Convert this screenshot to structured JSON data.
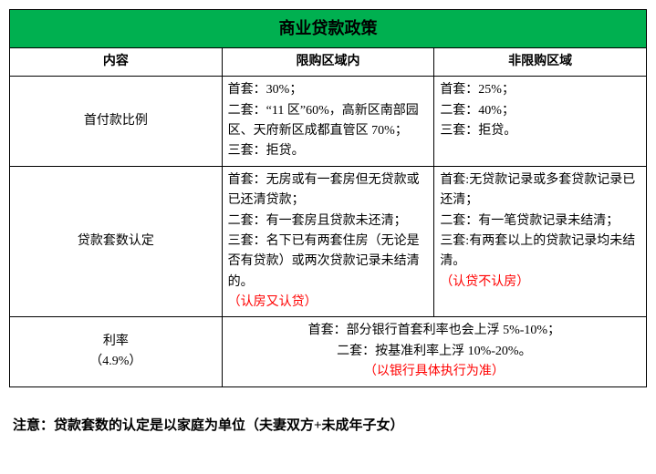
{
  "title": "商业贷款政策",
  "headers": {
    "content": "内容",
    "restricted": "限购区域内",
    "unrestricted": "非限购区域"
  },
  "rows": {
    "down_payment": {
      "label": "首付款比例",
      "restricted": "首套：30%；\n二套：“11 区”60%，高新区南部园区、天府新区成都直管区 70%；\n三套：拒贷。",
      "unrestricted": "首套：25%；\n二套：40%；\n三套：拒贷。"
    },
    "loan_count": {
      "label": "贷款套数认定",
      "restricted_main": "首套：无房或有一套房但无贷款或已还清贷款；\n二套：有一套房且贷款未还清；\n三套：名下已有两套住房（无论是否有贷款）或两次贷款记录未结清的。",
      "restricted_red": "（认房又认贷）",
      "unrestricted_main": "首套:无贷款记录或多套贷款记录已还清；\n二套：有一笔贷款记录未结清；\n三套:有两套以上的贷款记录均未结清。",
      "unrestricted_red": "（认贷不认房）"
    },
    "rate": {
      "label": "利率\n（4.9%）",
      "merged_main": "首套：部分银行首套利率也会上浮 5%-10%；\n二套：按基准利率上浮 10%-20%。",
      "merged_red": "（以银行具体执行为准）"
    }
  },
  "note": "注意：贷款套数的认定是以家庭为单位（夫妻双方+未成年子女）"
}
